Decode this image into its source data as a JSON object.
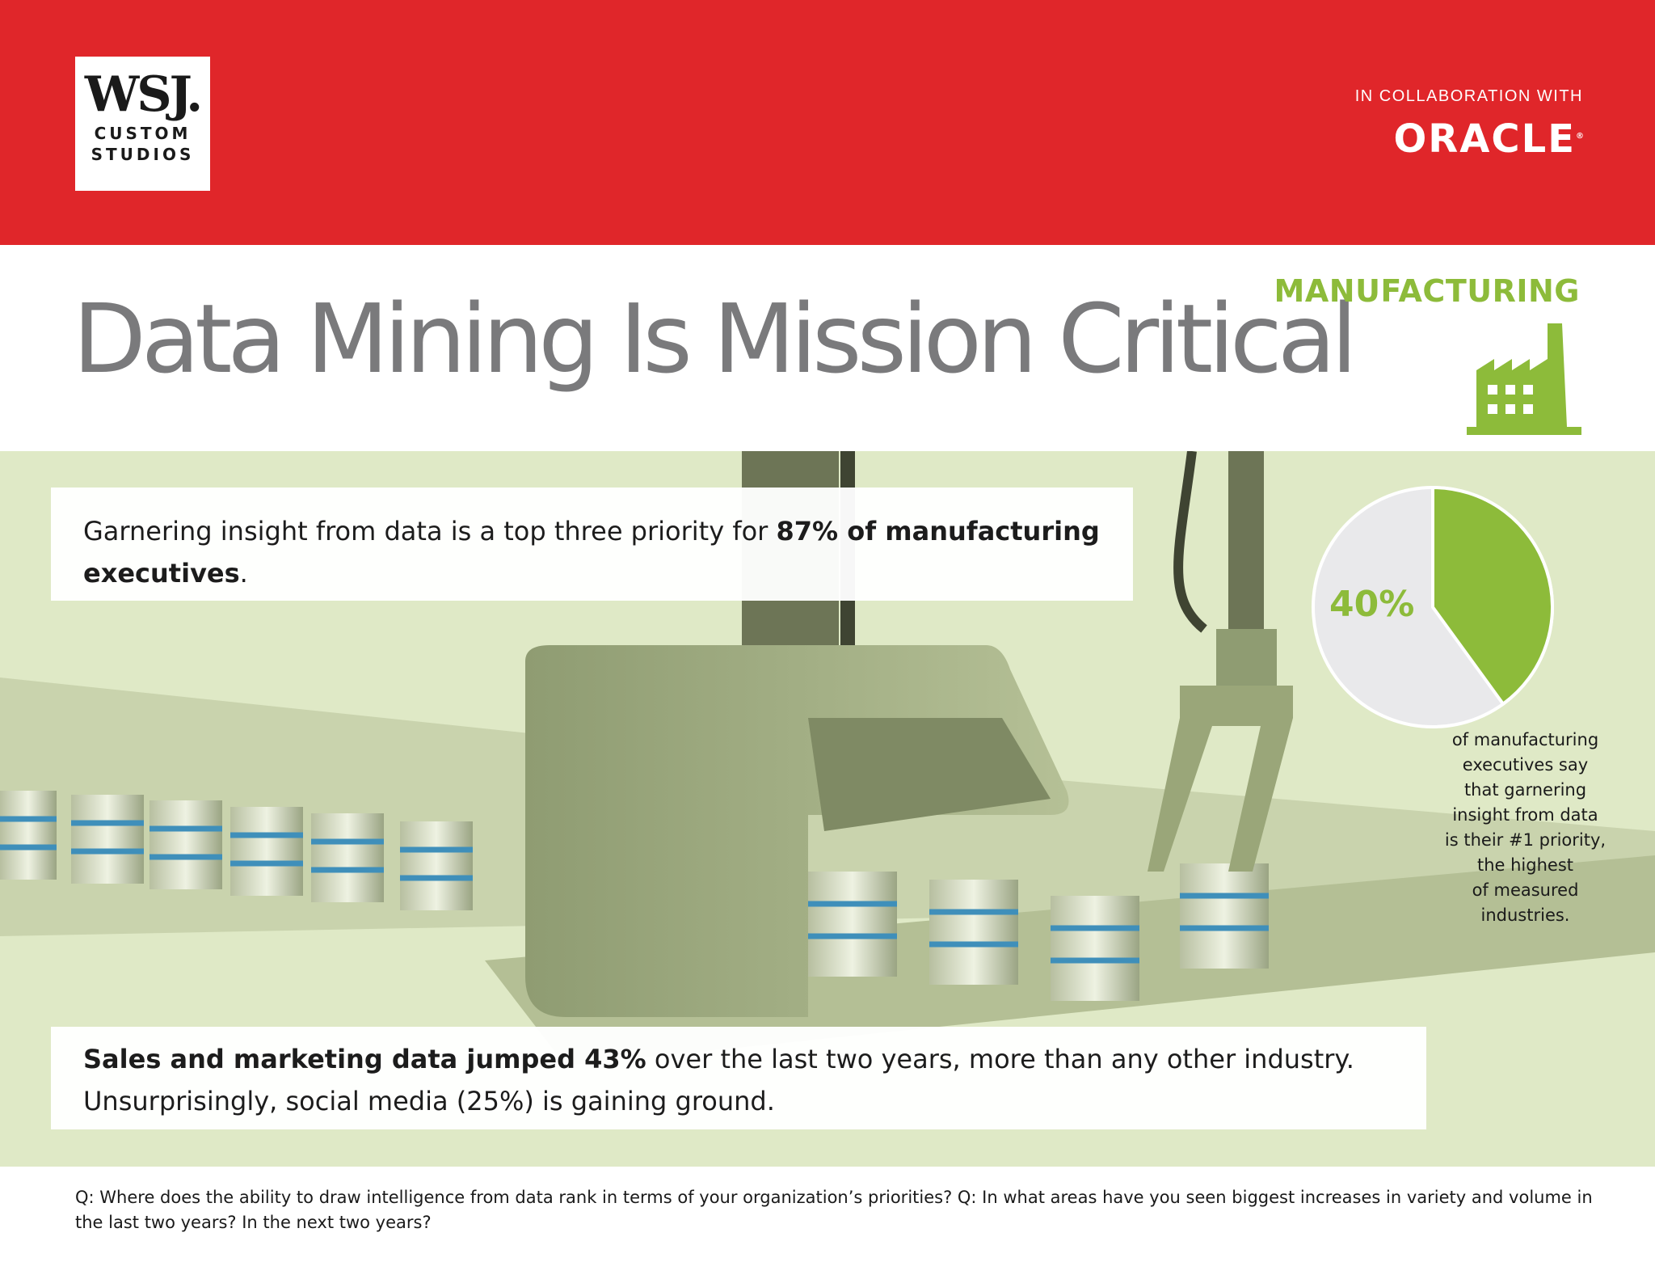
{
  "header": {
    "logo_main": "WSJ.",
    "logo_sub_line1": "CUSTOM",
    "logo_sub_line2": "STUDIOS",
    "collab_text": "IN COLLABORATION WITH",
    "partner_logo": "ORACLE"
  },
  "title": "Data Mining Is Mission Critical",
  "industry": {
    "label": "MANUFACTURING",
    "icon": "factory-icon"
  },
  "callout_top": {
    "text_before": "Garnering insight from data is a top three priority for ",
    "text_bold": "87% of manufacturing executives",
    "text_after": "."
  },
  "callout_bottom": {
    "text_bold": "Sales and marketing data jumped 43%",
    "text_rest": " over the last two years, more than any other industry. Unsurprisingly, social media (25%) is gaining ground."
  },
  "chart_data": {
    "type": "pie",
    "values": [
      40,
      60
    ],
    "label": "40%",
    "colors": [
      "#8dbb3a",
      "#e9e9eb"
    ]
  },
  "pie_caption_lines": [
    "of manufacturing",
    "executives say",
    "that garnering",
    "insight from data",
    "is their #1 priority,",
    "the highest",
    "of measured",
    "industries."
  ],
  "footnote": "Q: Where does the ability to draw intelligence from data rank in terms of your organization’s priorities? Q: In what areas have you seen biggest increases in variety and volume in the last two years? In the next two years?",
  "colors": {
    "brand_red": "#e0262a",
    "accent_green": "#8dbb3a",
    "title_gray": "#7a7a7c",
    "scene_bg": "#dfe9c6"
  }
}
